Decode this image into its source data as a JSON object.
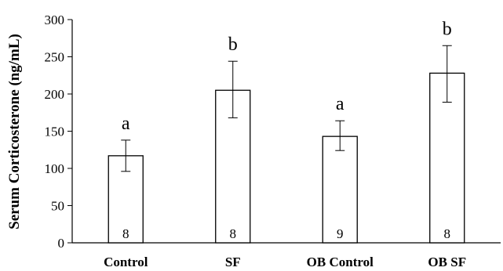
{
  "chart_data": {
    "type": "bar",
    "title": "",
    "xlabel": "",
    "ylabel": "Serum Corticosterone (ng/mL)",
    "ylim": [
      0,
      300
    ],
    "yticks": [
      "0",
      "50",
      "100",
      "150",
      "200",
      "250",
      "300"
    ],
    "categories": [
      "Control",
      "SF",
      "OB Control",
      "OB SF"
    ],
    "values": [
      117,
      205,
      143,
      228
    ],
    "error_upper": [
      138,
      244,
      164,
      265
    ],
    "error_lower": [
      96,
      168,
      124,
      189
    ],
    "significance_letters": [
      "a",
      "b",
      "a",
      "b"
    ],
    "n_labels": [
      "8",
      "8",
      "9",
      "8"
    ],
    "grid": false,
    "legend": "none",
    "bar_fill": "#ffffff",
    "bar_stroke": "#000000"
  }
}
